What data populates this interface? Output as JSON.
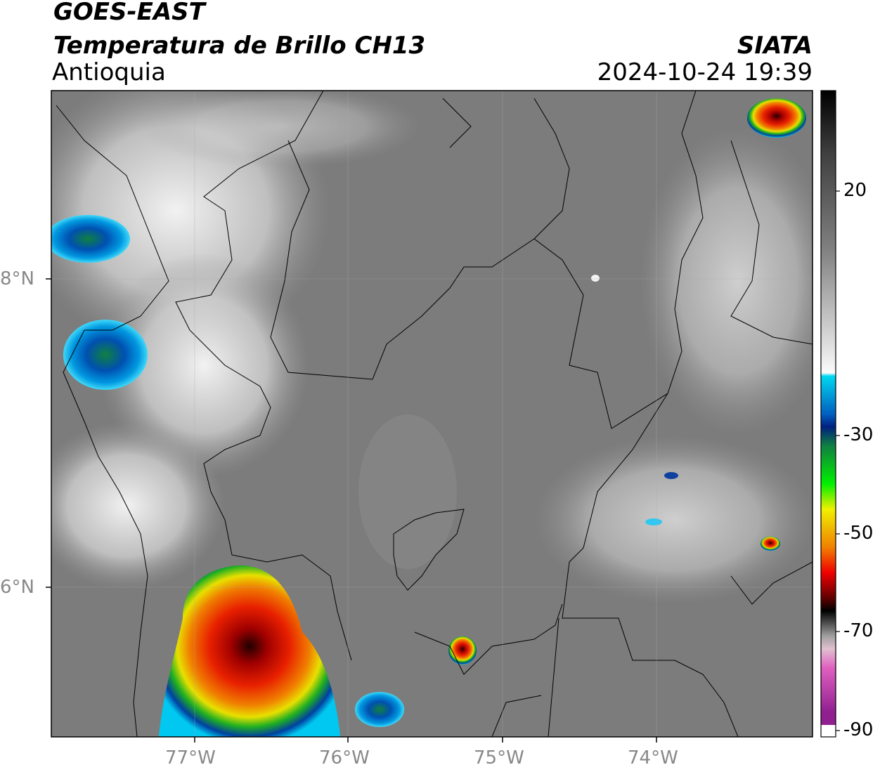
{
  "header": {
    "source": "GOES-EAST",
    "product": "Temperatura de Brillo CH13",
    "region": "Antioquia",
    "agency": "SIATA",
    "timestamp": "2024-10-24 19:39"
  },
  "map": {
    "longitude_labels": [
      "77°W",
      "76°W",
      "75°W",
      "74°W"
    ],
    "latitude_labels": [
      "8°N",
      "6°N"
    ]
  },
  "colorbar": {
    "labels": [
      "20",
      "-30",
      "-50",
      "-70",
      "-90"
    ]
  }
}
